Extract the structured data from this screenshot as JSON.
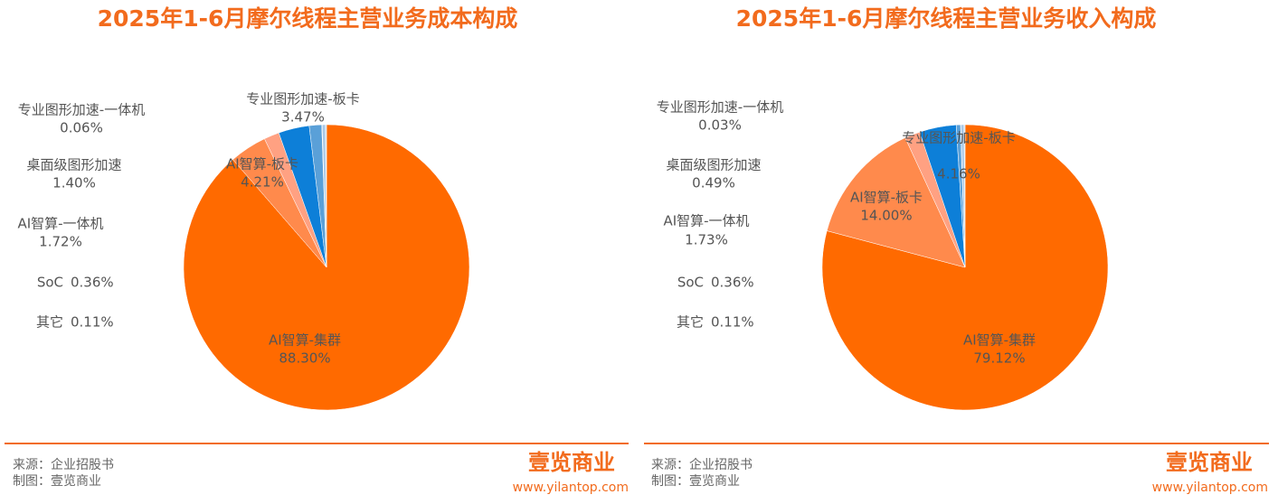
{
  "chart_data": [
    {
      "type": "pie",
      "title": "2025年1-6月摩尔线程主营业务成本构成",
      "categories": [
        "AI智算-集群",
        "AI智算-板卡",
        "AI智算-一体机",
        "专业图形加速-板卡",
        "桌面级图形加速",
        "专业图形加速-一体机",
        "SoC",
        "其它"
      ],
      "values": [
        88.3,
        4.21,
        1.72,
        3.47,
        1.4,
        0.06,
        0.36,
        0.11
      ],
      "value_labels": [
        "88.30%",
        "4.21%",
        "1.72%",
        "3.47%",
        "1.40%",
        "0.06%",
        "0.36%",
        "0.11%"
      ],
      "colors": [
        "#ff6a00",
        "#ff8a4c",
        "#ffa182",
        "#0d7fd8",
        "#5aa0d8",
        "#8ab8e0",
        "#a9c8e6",
        "#c8dcee"
      ]
    },
    {
      "type": "pie",
      "title": "2025年1-6月摩尔线程主营业务收入构成",
      "categories": [
        "AI智算-集群",
        "AI智算-板卡",
        "AI智算-一体机",
        "专业图形加速-板卡",
        "桌面级图形加速",
        "专业图形加速-一体机",
        "SoC",
        "其它"
      ],
      "values": [
        79.12,
        14.0,
        1.73,
        4.16,
        0.49,
        0.03,
        0.36,
        0.11
      ],
      "value_labels": [
        "79.12%",
        "14.00%",
        "1.73%",
        "4.16%",
        "0.49%",
        "0.03%",
        "0.36%",
        "0.11%"
      ],
      "colors": [
        "#ff6a00",
        "#ff8a4c",
        "#ffa182",
        "#0d7fd8",
        "#5aa0d8",
        "#8ab8e0",
        "#a9c8e6",
        "#c8dcee"
      ]
    }
  ],
  "footer": {
    "source": "来源：企业招股书",
    "credit": "制图：壹览商业",
    "logo": "壹览商业",
    "url": "www.yilantop.com"
  }
}
